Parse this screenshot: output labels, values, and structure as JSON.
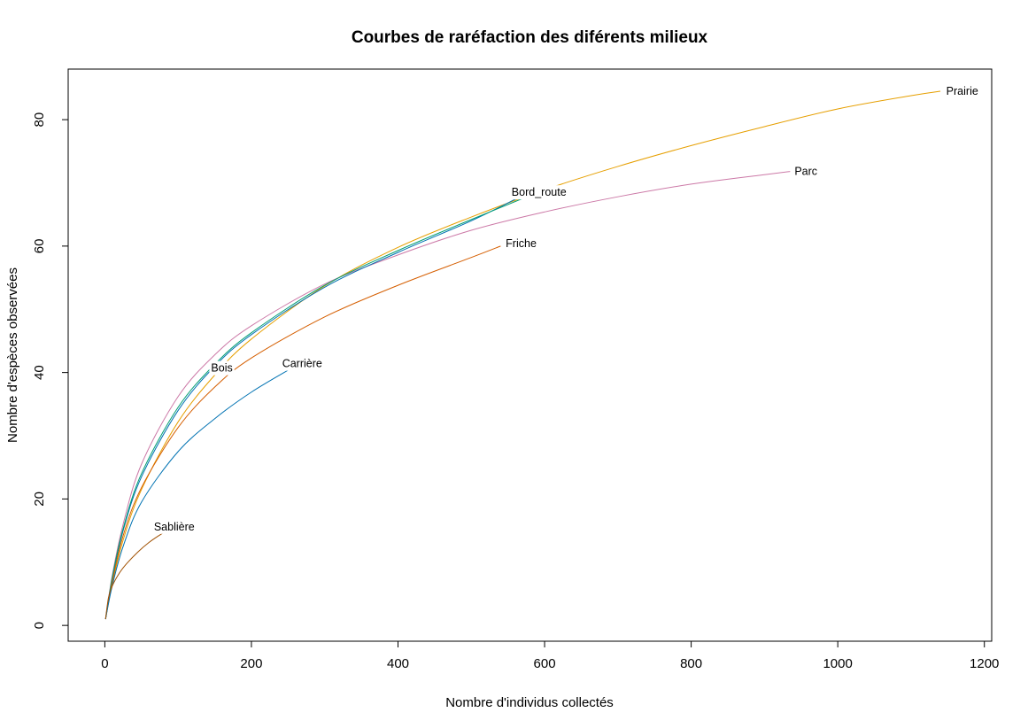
{
  "chart_data": {
    "type": "line",
    "title": "Courbes de raréfaction des diférents milieux",
    "xlabel": "Nombre d'individus collectés",
    "ylabel": "Nombre d'espèces observées",
    "xlim": [
      -50,
      1210
    ],
    "ylim": [
      -2.5,
      88
    ],
    "xticks": [
      0,
      200,
      400,
      600,
      800,
      1000,
      1200
    ],
    "yticks": [
      0,
      20,
      40,
      60,
      80
    ],
    "grid": false,
    "legend": "none",
    "series": [
      {
        "name": "Prairie",
        "color": "#e69f00",
        "label_at": [
          1148,
          84.5
        ],
        "x": [
          1,
          10,
          25,
          50,
          100,
          150,
          200,
          300,
          400,
          500,
          600,
          700,
          800,
          900,
          1000,
          1100,
          1140
        ],
        "y": [
          1,
          6.5,
          13.5,
          21.5,
          32.2,
          39.6,
          45.3,
          53.7,
          59.8,
          64.6,
          68.9,
          72.6,
          75.9,
          78.9,
          81.7,
          83.8,
          84.5
        ]
      },
      {
        "name": "Parc",
        "color": "#cc79a7",
        "label_at": [
          941,
          71.8
        ],
        "x": [
          1,
          10,
          25,
          50,
          100,
          150,
          200,
          300,
          400,
          500,
          600,
          700,
          800,
          900,
          935
        ],
        "y": [
          1,
          7.8,
          16,
          25.5,
          36.2,
          42.8,
          47.4,
          54,
          58.6,
          62.5,
          65.4,
          67.8,
          69.8,
          71.3,
          71.8
        ]
      },
      {
        "name": "Bord_route",
        "color": "#0072b2",
        "label_at": [
          555,
          68.5
        ],
        "x": [
          1,
          10,
          25,
          50,
          100,
          150,
          200,
          300,
          400,
          500,
          570
        ],
        "y": [
          1,
          7.2,
          15,
          23.5,
          34,
          41,
          46,
          53.5,
          59,
          64,
          68
        ]
      },
      {
        "name": "Bois",
        "color": "#009e73",
        "label_at": [
          145,
          40.7
        ],
        "x": [
          1,
          10,
          25,
          50,
          100,
          150,
          200,
          300,
          400,
          500,
          580
        ],
        "y": [
          1,
          7.5,
          15.3,
          24,
          34.5,
          41.3,
          46.3,
          53.8,
          59.3,
          64.2,
          68
        ]
      },
      {
        "name": "Friche",
        "color": "#d55e00",
        "label_at": [
          547,
          60.4
        ],
        "x": [
          1,
          10,
          25,
          50,
          100,
          150,
          200,
          300,
          400,
          500,
          540
        ],
        "y": [
          1,
          6.8,
          14.2,
          21.8,
          31.3,
          37.7,
          42.3,
          48.8,
          53.8,
          58.2,
          60
        ]
      },
      {
        "name": "Carrière",
        "color": "#0072b2",
        "label_at": [
          242,
          41.4
        ],
        "x": [
          1,
          10,
          25,
          50,
          100,
          150,
          200,
          255
        ],
        "y": [
          1,
          6.2,
          12.5,
          19.5,
          27.5,
          32.7,
          36.9,
          40.7
        ]
      },
      {
        "name": "Sablière",
        "color": "#a05000",
        "label_at": [
          67,
          15.6
        ],
        "x": [
          1,
          5,
          10,
          20,
          30,
          45,
          60,
          75,
          85
        ],
        "y": [
          1,
          4.4,
          6.2,
          8.3,
          9.8,
          11.6,
          13.1,
          14.3,
          15
        ]
      }
    ]
  }
}
